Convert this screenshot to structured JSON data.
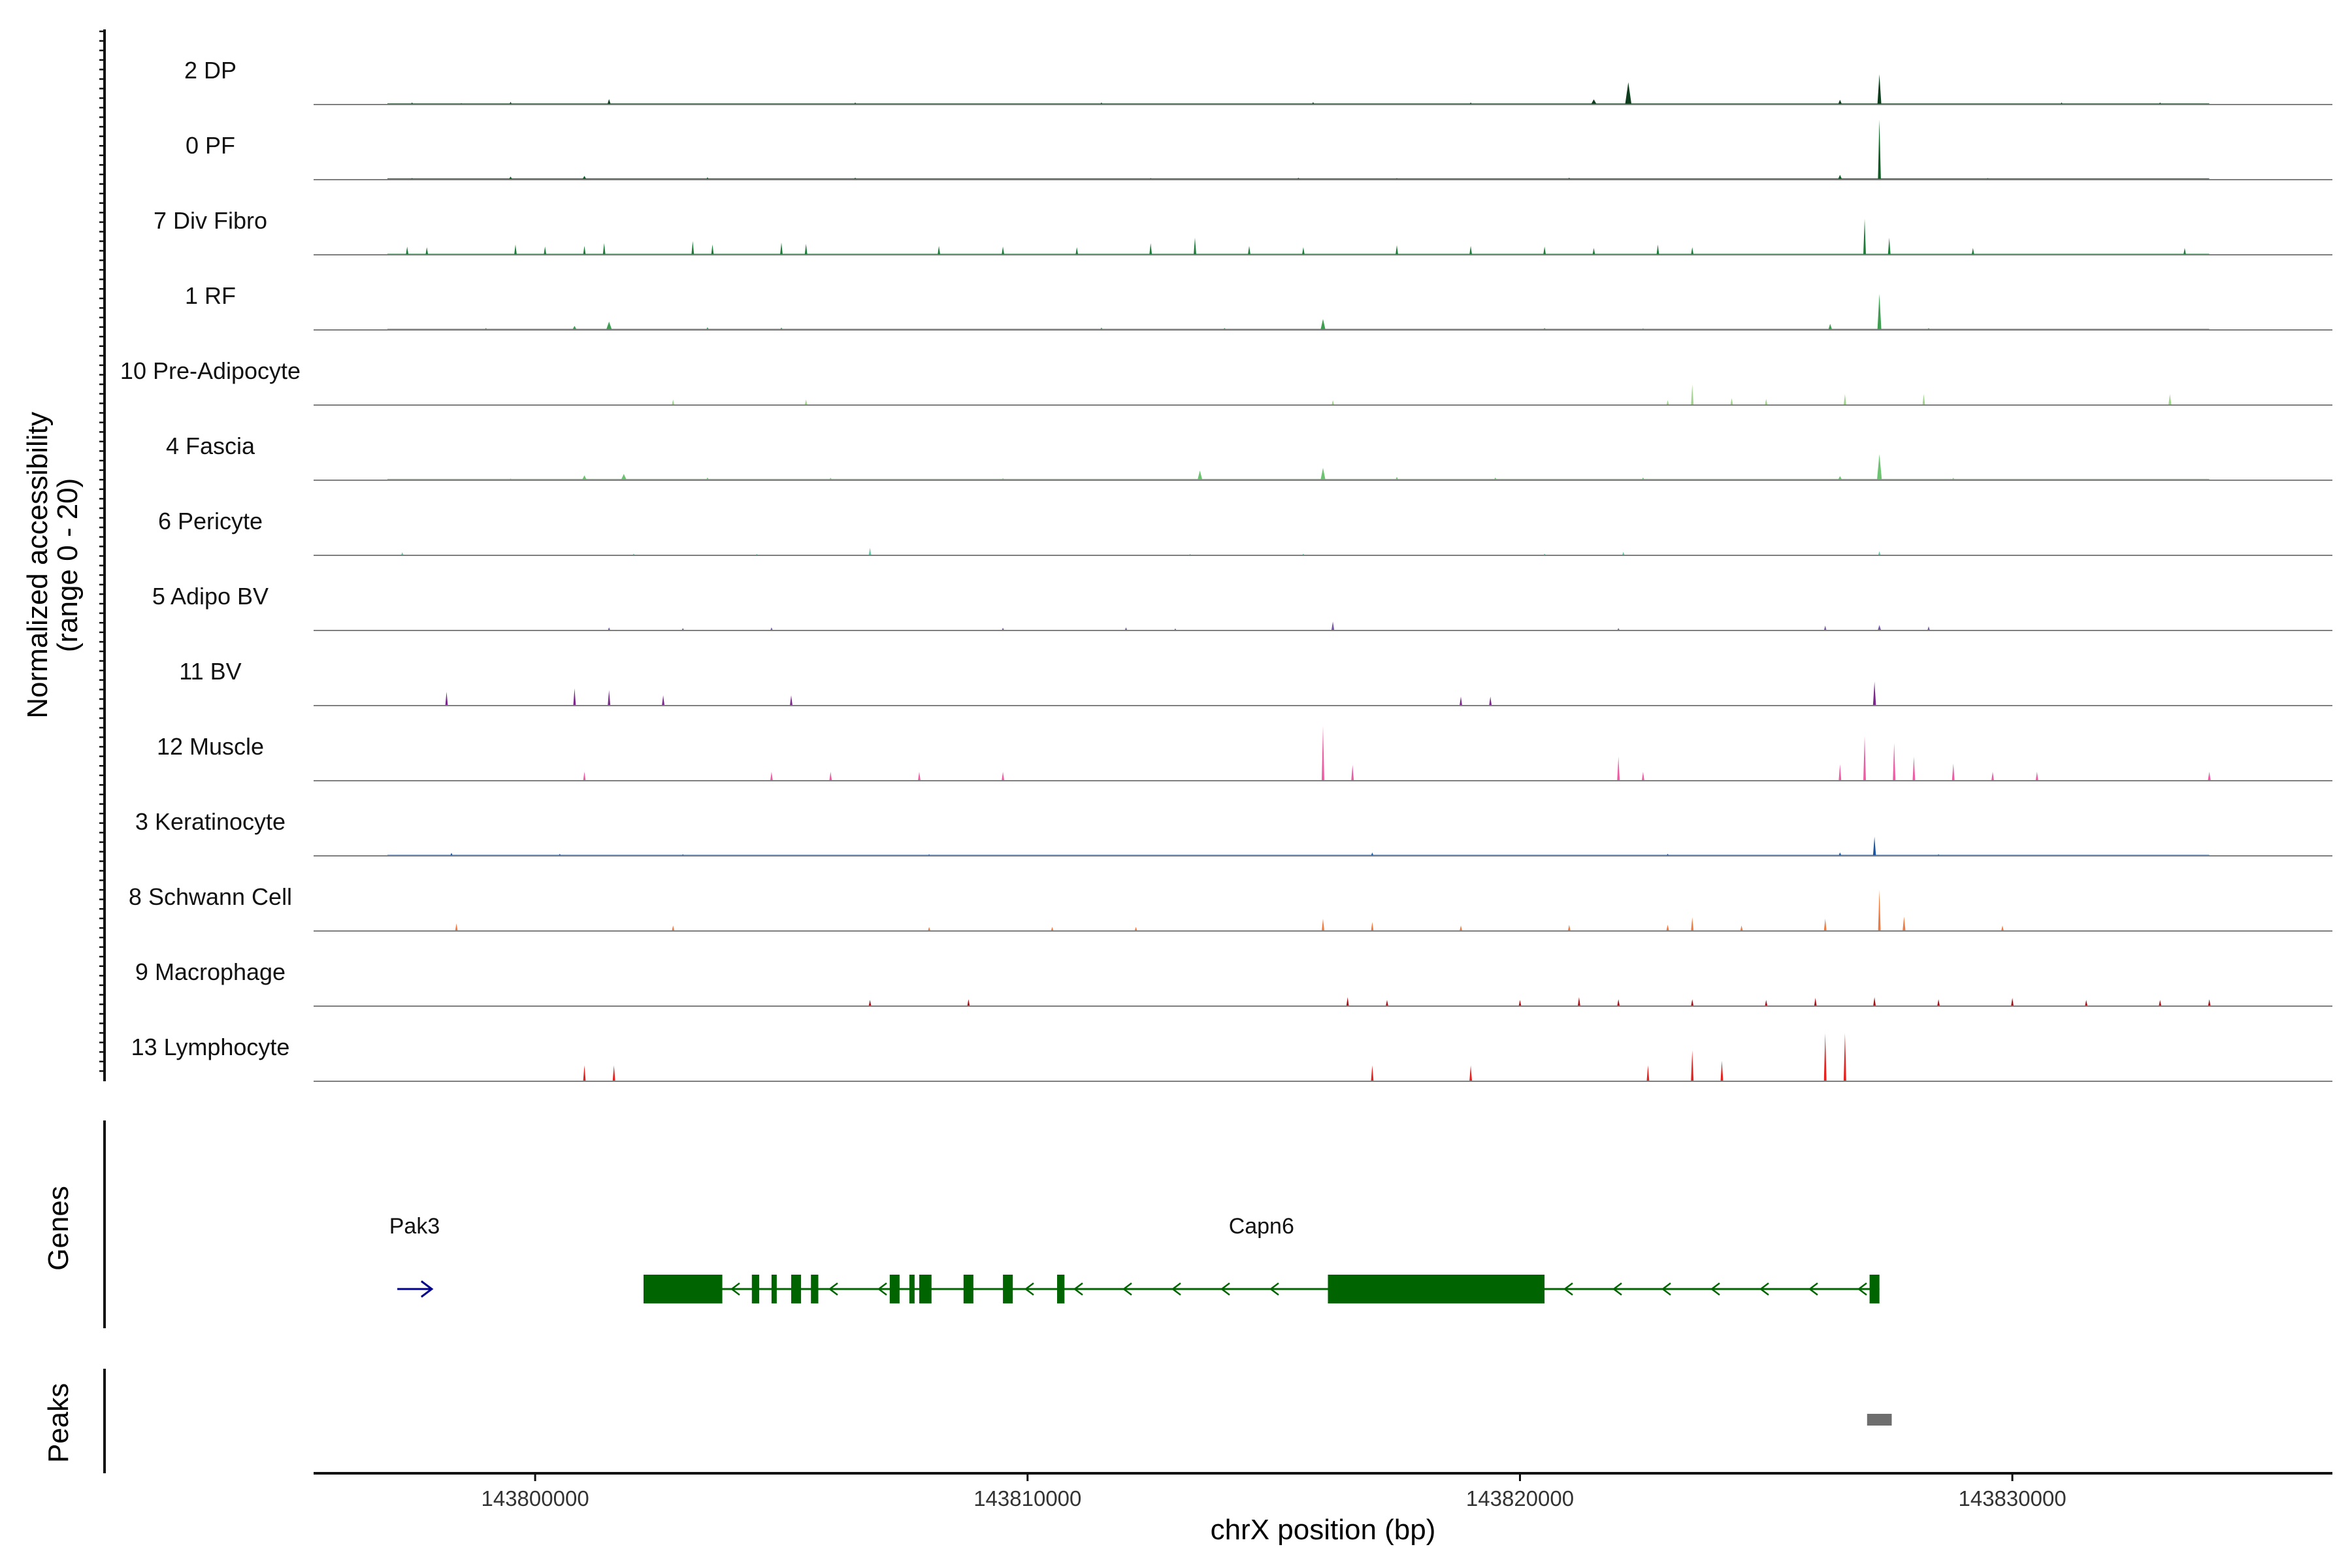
{
  "chart_data": {
    "type": "area",
    "title": "",
    "chromosome": "chrX",
    "xlabel": "chrX position (bp)",
    "ylabel_line1": "Normalized accessibility",
    "ylabel_line2": "(range 0 - 20)",
    "y_range": [
      0,
      20
    ],
    "xlim": [
      143795500,
      143836500
    ],
    "x_ticks": [
      143800000,
      143810000,
      143820000,
      143830000
    ],
    "x_tick_labels": [
      "143800000",
      "143810000",
      "143820000",
      "143830000"
    ],
    "genes_label": "Genes",
    "peaks_label": "Peaks",
    "tracks": [
      {
        "name": "2 DP",
        "color": "#0d3d1c",
        "peaks": [
          [
            143797500,
            0.6,
            40
          ],
          [
            143798500,
            0.4,
            30
          ],
          [
            143799500,
            0.8,
            40
          ],
          [
            143801500,
            1.6,
            70
          ],
          [
            143806500,
            0.6,
            40
          ],
          [
            143811500,
            0.6,
            50
          ],
          [
            143815800,
            0.7,
            40
          ],
          [
            143819000,
            0.6,
            40
          ],
          [
            143821500,
            1.5,
            120
          ],
          [
            143822200,
            6.5,
            130
          ],
          [
            143826500,
            1.4,
            80
          ],
          [
            143827300,
            8.8,
            80
          ],
          [
            143831000,
            0.6,
            40
          ],
          [
            143833000,
            0.6,
            40
          ]
        ],
        "segments": [
          [
            143797000,
            143834000,
            0.35
          ]
        ]
      },
      {
        "name": "0 PF",
        "color": "#0e5e24",
        "peaks": [
          [
            143797500,
            0.5,
            60
          ],
          [
            143799500,
            0.9,
            80
          ],
          [
            143801000,
            1.1,
            90
          ],
          [
            143803500,
            0.7,
            60
          ],
          [
            143806500,
            0.6,
            70
          ],
          [
            143812500,
            0.5,
            50
          ],
          [
            143815500,
            0.6,
            60
          ],
          [
            143817500,
            0.5,
            50
          ],
          [
            143821000,
            0.6,
            60
          ],
          [
            143826500,
            1.4,
            90
          ],
          [
            143827300,
            17.5,
            60
          ],
          [
            143829500,
            0.5,
            40
          ]
        ],
        "segments": [
          [
            143797000,
            143834000,
            0.4
          ]
        ]
      },
      {
        "name": "7 Div Fibro",
        "color": "#1c7c38",
        "peaks": [
          [
            143797400,
            2.4,
            20
          ],
          [
            143797800,
            2.2,
            20
          ],
          [
            143799600,
            3.0,
            20
          ],
          [
            143800200,
            2.4,
            20
          ],
          [
            143801000,
            2.6,
            20
          ],
          [
            143801400,
            3.4,
            20
          ],
          [
            143803200,
            4.0,
            25
          ],
          [
            143803600,
            3.0,
            20
          ],
          [
            143805000,
            3.6,
            25
          ],
          [
            143805500,
            3.2,
            20
          ],
          [
            143808200,
            2.6,
            20
          ],
          [
            143809500,
            2.4,
            20
          ],
          [
            143811000,
            2.2,
            20
          ],
          [
            143812500,
            3.4,
            20
          ],
          [
            143813400,
            5.0,
            25
          ],
          [
            143814500,
            2.6,
            20
          ],
          [
            143815600,
            2.2,
            20
          ],
          [
            143817500,
            2.8,
            20
          ],
          [
            143819000,
            2.6,
            20
          ],
          [
            143820500,
            2.4,
            20
          ],
          [
            143821500,
            2.0,
            20
          ],
          [
            143822800,
            3.0,
            20
          ],
          [
            143823500,
            2.2,
            20
          ],
          [
            143827000,
            10.5,
            40
          ],
          [
            143827500,
            5.0,
            40
          ],
          [
            143829200,
            2.0,
            20
          ],
          [
            143833500,
            2.0,
            20
          ]
        ],
        "segments": [
          [
            143797000,
            143834000,
            0.3
          ]
        ]
      },
      {
        "name": "1 RF",
        "color": "#3f9e52",
        "peaks": [
          [
            143799000,
            0.6,
            60
          ],
          [
            143800800,
            1.2,
            90
          ],
          [
            143801500,
            2.4,
            120
          ],
          [
            143803500,
            0.8,
            60
          ],
          [
            143805000,
            0.7,
            60
          ],
          [
            143811500,
            0.7,
            60
          ],
          [
            143814000,
            0.6,
            60
          ],
          [
            143816000,
            3.2,
            100
          ],
          [
            143820500,
            0.6,
            60
          ],
          [
            143822500,
            0.5,
            40
          ],
          [
            143826300,
            1.8,
            80
          ],
          [
            143827300,
            10.5,
            80
          ],
          [
            143828300,
            0.6,
            40
          ]
        ],
        "segments": [
          [
            143797000,
            143834000,
            0.35
          ]
        ]
      },
      {
        "name": "10 Pre-Adipocyte",
        "color": "#a3d48f",
        "peaks": [
          [
            143802800,
            1.6,
            40
          ],
          [
            143805500,
            1.6,
            40
          ],
          [
            143816200,
            1.4,
            40
          ],
          [
            143823000,
            1.4,
            40
          ],
          [
            143823500,
            6.0,
            40
          ],
          [
            143824300,
            2.0,
            30
          ],
          [
            143825000,
            1.8,
            30
          ],
          [
            143826600,
            3.2,
            30
          ],
          [
            143828200,
            3.2,
            40
          ],
          [
            143833200,
            3.2,
            60
          ]
        ],
        "segments": []
      },
      {
        "name": "4 Fascia",
        "color": "#6ec372",
        "peaks": [
          [
            143799500,
            0.5,
            60
          ],
          [
            143801000,
            1.4,
            100
          ],
          [
            143801800,
            1.8,
            120
          ],
          [
            143803500,
            0.8,
            60
          ],
          [
            143806000,
            0.7,
            60
          ],
          [
            143809500,
            0.6,
            60
          ],
          [
            143813500,
            2.8,
            100
          ],
          [
            143816000,
            3.6,
            100
          ],
          [
            143817500,
            1.0,
            60
          ],
          [
            143819500,
            0.8,
            60
          ],
          [
            143822500,
            0.8,
            60
          ],
          [
            143826500,
            1.2,
            90
          ],
          [
            143827300,
            7.6,
            100
          ],
          [
            143828800,
            0.7,
            50
          ]
        ],
        "segments": [
          [
            143797000,
            143834000,
            0.4
          ]
        ]
      },
      {
        "name": "6 Pericyte",
        "color": "#70c7a8",
        "peaks": [
          [
            143797300,
            0.9,
            40
          ],
          [
            143802000,
            0.5,
            30
          ],
          [
            143804500,
            0.4,
            30
          ],
          [
            143806800,
            2.2,
            40
          ],
          [
            143813300,
            0.4,
            30
          ],
          [
            143815600,
            0.5,
            30
          ],
          [
            143820500,
            0.5,
            30
          ],
          [
            143822100,
            1.0,
            40
          ],
          [
            143827300,
            1.2,
            40
          ]
        ],
        "segments": [
          [
            143797000,
            143834000,
            0.15
          ]
        ]
      },
      {
        "name": "5 Adipo BV",
        "color": "#7a55a8",
        "peaks": [
          [
            143801500,
            0.9,
            40
          ],
          [
            143803000,
            0.7,
            30
          ],
          [
            143804800,
            0.9,
            30
          ],
          [
            143809500,
            0.8,
            30
          ],
          [
            143812000,
            0.9,
            30
          ],
          [
            143813000,
            0.6,
            30
          ],
          [
            143816200,
            2.6,
            60
          ],
          [
            143822000,
            0.7,
            30
          ],
          [
            143826200,
            1.4,
            40
          ],
          [
            143827300,
            1.6,
            70
          ],
          [
            143828300,
            1.2,
            40
          ]
        ],
        "segments": [
          [
            143801000,
            143829000,
            0.15
          ]
        ]
      },
      {
        "name": "11 BV",
        "color": "#7b2a8c",
        "peaks": [
          [
            143798200,
            4.0,
            30
          ],
          [
            143800800,
            5.0,
            40
          ],
          [
            143801500,
            4.5,
            40
          ],
          [
            143802600,
            3.0,
            30
          ],
          [
            143805200,
            3.0,
            30
          ],
          [
            143818800,
            2.6,
            30
          ],
          [
            143819400,
            2.6,
            30
          ],
          [
            143827200,
            7.0,
            60
          ]
        ],
        "segments": []
      },
      {
        "name": "12 Muscle",
        "color": "#ec5ea4",
        "peaks": [
          [
            143801000,
            2.6,
            30
          ],
          [
            143804800,
            2.6,
            40
          ],
          [
            143806000,
            2.6,
            30
          ],
          [
            143807800,
            2.6,
            30
          ],
          [
            143809500,
            2.6,
            30
          ],
          [
            143816000,
            16.0,
            30
          ],
          [
            143816600,
            4.6,
            30
          ],
          [
            143822000,
            7.0,
            30
          ],
          [
            143822500,
            2.6,
            20
          ],
          [
            143826500,
            4.8,
            30
          ],
          [
            143827000,
            13.0,
            30
          ],
          [
            143827600,
            11.0,
            30
          ],
          [
            143828000,
            7.0,
            30
          ],
          [
            143828800,
            5.0,
            30
          ],
          [
            143829600,
            2.6,
            20
          ],
          [
            143830500,
            2.6,
            30
          ],
          [
            143834000,
            2.6,
            60
          ]
        ],
        "segments": []
      },
      {
        "name": "3 Keratinocyte",
        "color": "#1d569e",
        "peaks": [
          [
            143798300,
            0.9,
            40
          ],
          [
            143800500,
            0.6,
            40
          ],
          [
            143803000,
            0.5,
            40
          ],
          [
            143808000,
            0.5,
            40
          ],
          [
            143817000,
            1.0,
            40
          ],
          [
            143823000,
            0.6,
            40
          ],
          [
            143826500,
            1.0,
            60
          ],
          [
            143827200,
            5.6,
            60
          ],
          [
            143828500,
            0.5,
            40
          ]
        ],
        "segments": [
          [
            143797000,
            143834000,
            0.3
          ]
        ]
      },
      {
        "name": "8 Schwann Cell",
        "color": "#f07b42",
        "peaks": [
          [
            143798400,
            2.2,
            40
          ],
          [
            143802800,
            1.6,
            30
          ],
          [
            143808000,
            1.2,
            30
          ],
          [
            143810500,
            1.2,
            40
          ],
          [
            143812200,
            1.2,
            40
          ],
          [
            143816000,
            3.6,
            40
          ],
          [
            143817000,
            2.6,
            30
          ],
          [
            143818800,
            1.6,
            40
          ],
          [
            143821000,
            1.8,
            30
          ],
          [
            143823000,
            1.8,
            60
          ],
          [
            143823500,
            4.0,
            50
          ],
          [
            143824500,
            1.6,
            40
          ],
          [
            143826200,
            3.6,
            50
          ],
          [
            143827300,
            12.0,
            50
          ],
          [
            143827800,
            4.2,
            60
          ],
          [
            143829800,
            1.6,
            30
          ]
        ],
        "segments": [
          [
            143797000,
            143834000,
            0.1
          ]
        ]
      },
      {
        "name": "9 Macrophage",
        "color": "#a3151b",
        "peaks": [
          [
            143806800,
            1.8,
            30
          ],
          [
            143808800,
            2.0,
            20
          ],
          [
            143816500,
            2.6,
            40
          ],
          [
            143817300,
            1.8,
            30
          ],
          [
            143820000,
            1.8,
            30
          ],
          [
            143821200,
            2.6,
            30
          ],
          [
            143822000,
            2.0,
            40
          ],
          [
            143823500,
            2.0,
            40
          ],
          [
            143825000,
            1.8,
            40
          ],
          [
            143826000,
            2.4,
            40
          ],
          [
            143827200,
            2.6,
            40
          ],
          [
            143828500,
            2.0,
            30
          ],
          [
            143830000,
            2.4,
            40
          ],
          [
            143831500,
            1.8,
            40
          ],
          [
            143833000,
            1.8,
            40
          ],
          [
            143834000,
            2.0,
            20
          ]
        ],
        "segments": []
      },
      {
        "name": "13 Lymphocyte",
        "color": "#e4221f",
        "peaks": [
          [
            143801000,
            4.6,
            30
          ],
          [
            143801600,
            4.6,
            40
          ],
          [
            143817000,
            4.6,
            30
          ],
          [
            143819000,
            4.6,
            30
          ],
          [
            143822600,
            4.6,
            30
          ],
          [
            143823500,
            9.0,
            30
          ],
          [
            143824100,
            6.0,
            30
          ],
          [
            143826200,
            14.0,
            30
          ],
          [
            143826600,
            14.0,
            30
          ]
        ],
        "segments": []
      }
    ],
    "genes": [
      {
        "name": "Pak3",
        "color": "#00008b",
        "strand": "+",
        "start": 143797200,
        "end": 143797900,
        "exons": []
      },
      {
        "name": "Capn6",
        "color": "#006400",
        "strand": "-",
        "start": 143802200,
        "end": 143827300,
        "exons": [
          [
            143802200,
            143803800
          ],
          [
            143804400,
            143804550
          ],
          [
            143804800,
            143804900
          ],
          [
            143805200,
            143805400
          ],
          [
            143805600,
            143805750
          ],
          [
            143807200,
            143807400
          ],
          [
            143807600,
            143807700
          ],
          [
            143807800,
            143808050
          ],
          [
            143808700,
            143808900
          ],
          [
            143809500,
            143809700
          ],
          [
            143810600,
            143810750
          ],
          [
            143816100,
            143820500
          ],
          [
            143827100,
            143827300
          ]
        ]
      }
    ],
    "peaks_regions": [
      [
        143827050,
        143827550
      ]
    ]
  }
}
